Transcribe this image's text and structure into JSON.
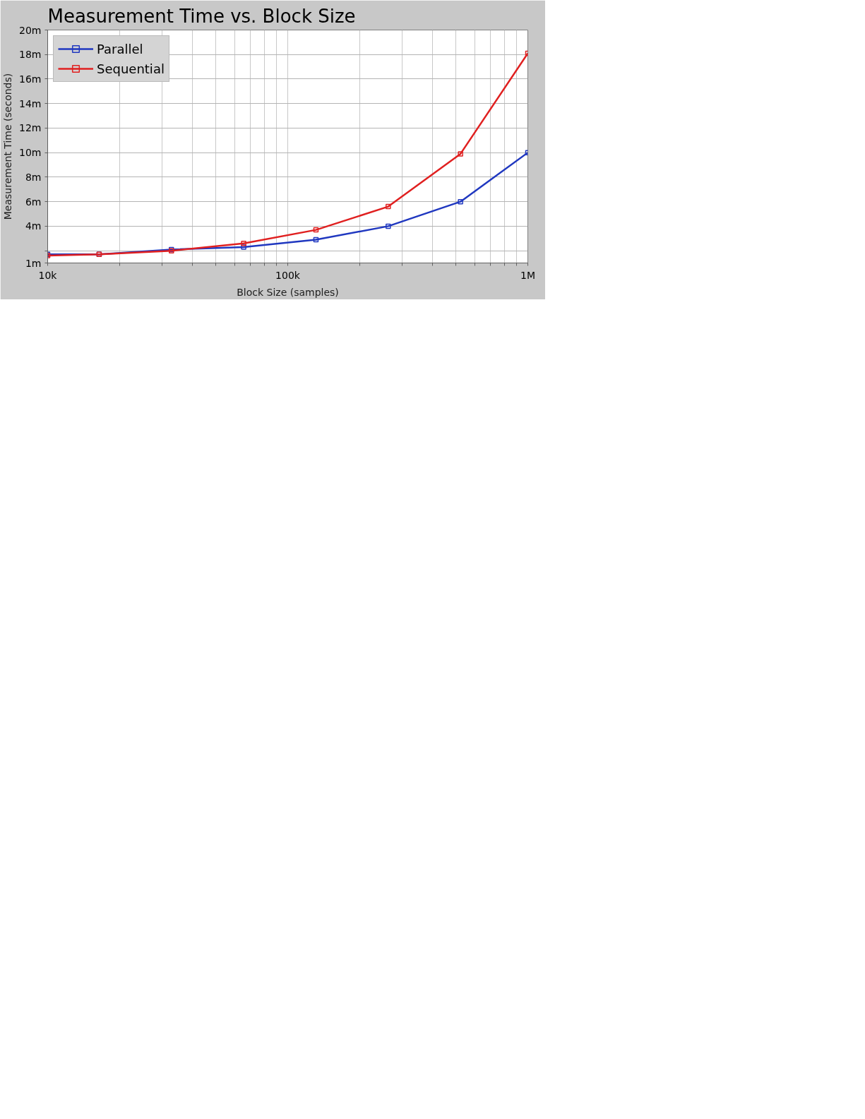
{
  "chart_data": {
    "type": "line",
    "title": "Measurement Time vs. Block Size",
    "xlabel": "Block Size (samples)",
    "ylabel": "Measurement Time (seconds)",
    "log": "x",
    "xlim": [
      10000,
      1000000
    ],
    "ylim": [
      1,
      20
    ],
    "xticks": [
      {
        "value": 10000,
        "label": "10k"
      },
      {
        "value": 20000,
        "label": null
      },
      {
        "value": 30000,
        "label": null
      },
      {
        "value": 40000,
        "label": null
      },
      {
        "value": 50000,
        "label": null
      },
      {
        "value": 60000,
        "label": null
      },
      {
        "value": 70000,
        "label": null
      },
      {
        "value": 80000,
        "label": null
      },
      {
        "value": 90000,
        "label": null
      },
      {
        "value": 100000,
        "label": "100k"
      },
      {
        "value": 200000,
        "label": null
      },
      {
        "value": 300000,
        "label": null
      },
      {
        "value": 400000,
        "label": null
      },
      {
        "value": 500000,
        "label": null
      },
      {
        "value": 600000,
        "label": null
      },
      {
        "value": 700000,
        "label": null
      },
      {
        "value": 800000,
        "label": null
      },
      {
        "value": 900000,
        "label": null
      },
      {
        "value": 1000000,
        "label": "1M"
      }
    ],
    "yticks": [
      {
        "value": 1,
        "label": "1m"
      },
      {
        "value": 2,
        "label": null
      },
      {
        "value": 4,
        "label": "4m"
      },
      {
        "value": 6,
        "label": "6m"
      },
      {
        "value": 8,
        "label": "8m"
      },
      {
        "value": 10,
        "label": "10m"
      },
      {
        "value": 12,
        "label": "12m"
      },
      {
        "value": 14,
        "label": "14m"
      },
      {
        "value": 16,
        "label": "16m"
      },
      {
        "value": 18,
        "label": "18m"
      },
      {
        "value": 20,
        "label": "20m"
      }
    ],
    "grid": true,
    "legend": "top left",
    "marker": "square",
    "line_style": "solid",
    "series": [
      {
        "name": "Parallel",
        "color": "#2038c0",
        "x": [
          10000,
          16384,
          32768,
          65536,
          131072,
          262144,
          524288,
          1000000
        ],
        "values": [
          1.7,
          1.7,
          2.1,
          2.3,
          2.9,
          4.0,
          6.0,
          10.0
        ]
      },
      {
        "name": "Sequential",
        "color": "#e02020",
        "x": [
          10000,
          16384,
          32768,
          65536,
          131072,
          262144,
          524288,
          1000000
        ],
        "values": [
          1.6,
          1.7,
          2.0,
          2.6,
          3.7,
          5.6,
          9.9,
          18.1
        ]
      }
    ]
  }
}
